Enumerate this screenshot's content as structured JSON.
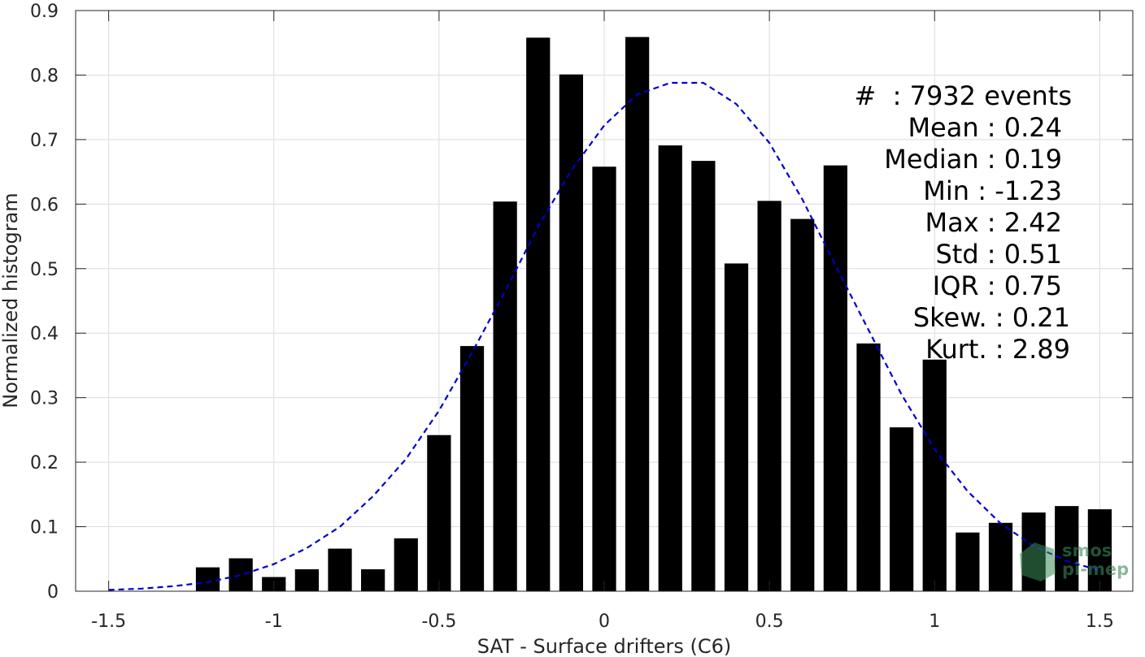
{
  "chart_data": {
    "type": "bar",
    "xlabel": "SAT - Surface drifters (C6)",
    "ylabel": "Normalized histogram",
    "xlim": [
      -1.6,
      1.6
    ],
    "ylim": [
      0,
      0.9
    ],
    "grid": true,
    "x_ticks": [
      "-1.5",
      "-1",
      "-0.5",
      "0",
      "0.5",
      "1",
      "1.5"
    ],
    "y_ticks": [
      "0",
      "0.1",
      "0.2",
      "0.3",
      "0.4",
      "0.5",
      "0.6",
      "0.7",
      "0.8",
      "0.9"
    ],
    "bar_color": "#000000",
    "bars": {
      "x": [
        -1.2,
        -1.1,
        -1.0,
        -0.9,
        -0.8,
        -0.7,
        -0.6,
        -0.5,
        -0.4,
        -0.3,
        -0.2,
        -0.1,
        0.0,
        0.1,
        0.2,
        0.3,
        0.4,
        0.5,
        0.6,
        0.7,
        0.8,
        0.9,
        1.0,
        1.1,
        1.2,
        1.3,
        1.4,
        1.5
      ],
      "values": [
        0.037,
        0.051,
        0.022,
        0.034,
        0.066,
        0.034,
        0.082,
        0.242,
        0.38,
        0.604,
        0.858,
        0.801,
        0.658,
        0.859,
        0.691,
        0.667,
        0.508,
        0.605,
        0.577,
        0.66,
        0.384,
        0.254,
        0.359,
        0.091,
        0.106,
        0.122,
        0.132,
        0.127
      ]
    },
    "fit": {
      "line_style": "dashed",
      "color": "#0000cc",
      "x": [
        -1.5,
        -1.4,
        -1.3,
        -1.2,
        -1.1,
        -1.0,
        -0.9,
        -0.8,
        -0.7,
        -0.6,
        -0.5,
        -0.4,
        -0.3,
        -0.2,
        -0.1,
        0.0,
        0.1,
        0.2,
        0.3,
        0.4,
        0.5,
        0.6,
        0.7,
        0.8,
        0.9,
        1.0,
        1.1,
        1.2,
        1.3,
        1.4,
        1.5
      ],
      "y": [
        0.002,
        0.004,
        0.008,
        0.014,
        0.025,
        0.042,
        0.067,
        0.1,
        0.147,
        0.205,
        0.28,
        0.37,
        0.465,
        0.565,
        0.652,
        0.722,
        0.77,
        0.788,
        0.788,
        0.755,
        0.695,
        0.607,
        0.505,
        0.405,
        0.305,
        0.22,
        0.155,
        0.105,
        0.07,
        0.047,
        0.032
      ]
    },
    "annotations": [
      "#  : 7932 events",
      "Mean : 0.24",
      "Median : 0.19",
      "Min : -1.23",
      "Max : 2.42",
      "Std : 0.51",
      "IQR : 0.75",
      "Skew. : 0.21",
      "Kurt. : 2.89"
    ]
  },
  "watermark": {
    "line1": "smos",
    "line2": "pi-mep"
  }
}
